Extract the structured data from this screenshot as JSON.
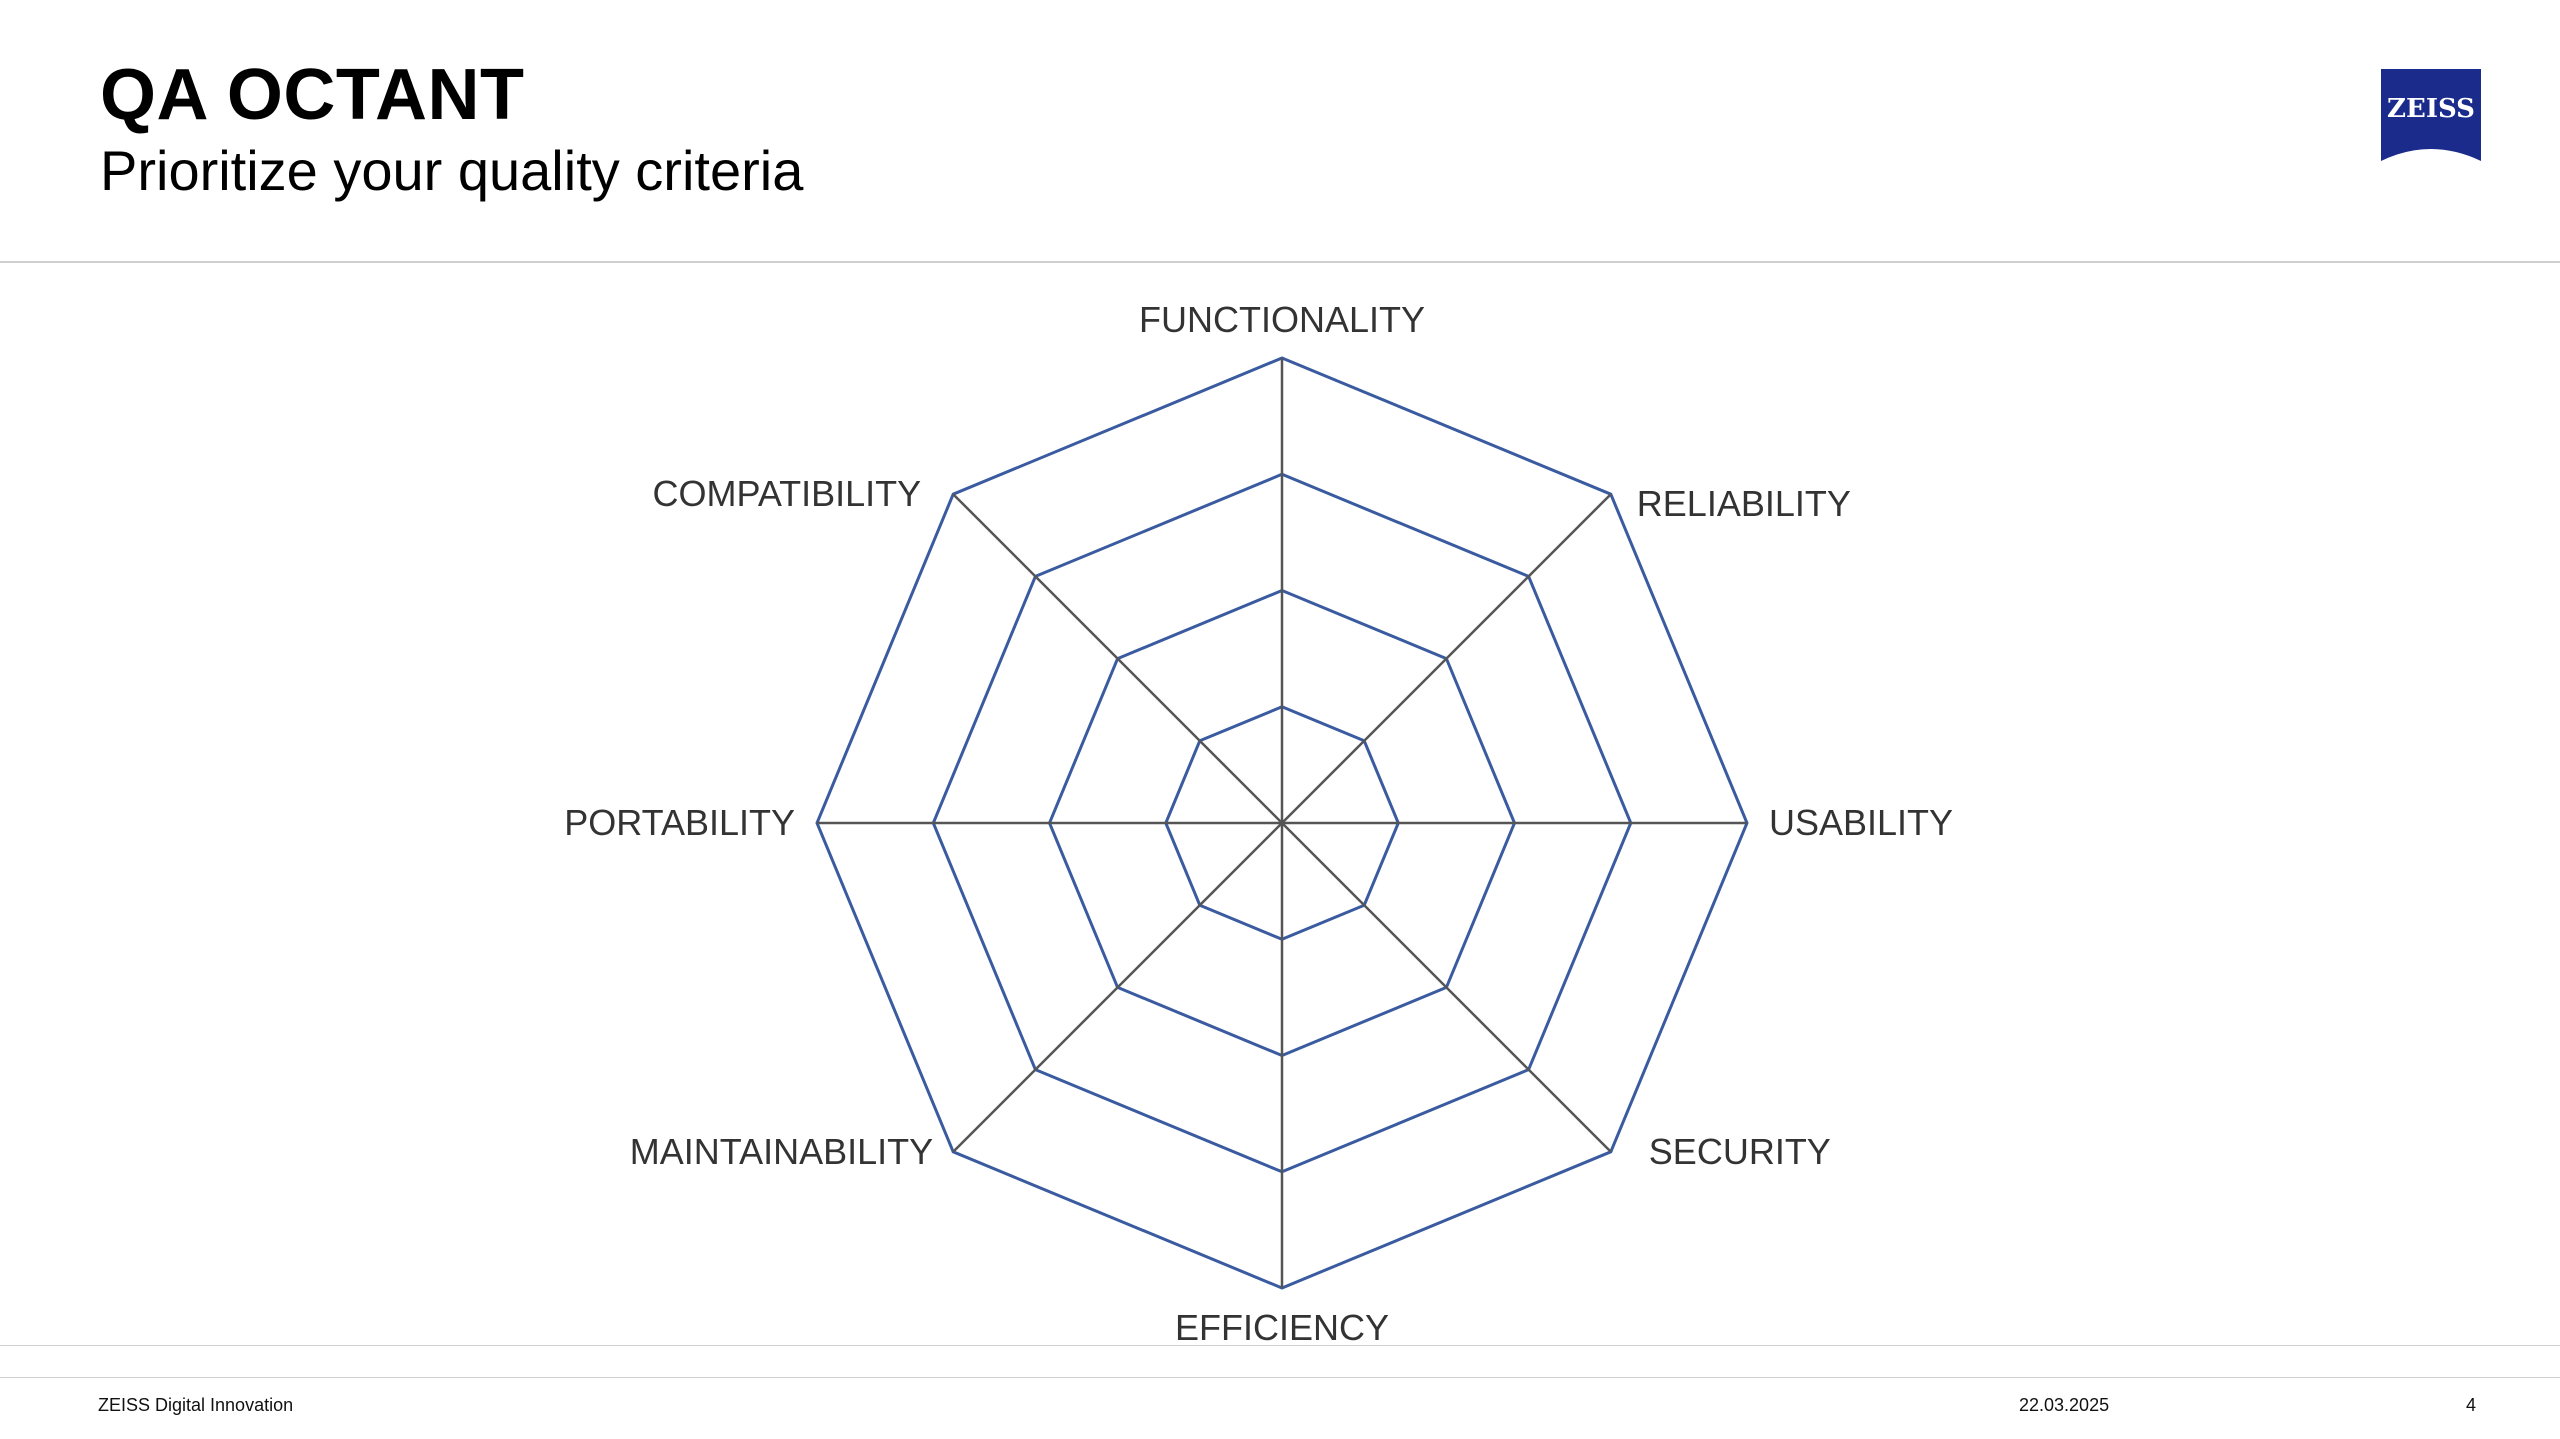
{
  "header": {
    "title": "QA OCTANT",
    "subtitle": "Prioritize your quality criteria",
    "logo_text": "ZEISS"
  },
  "diagram": {
    "type": "radar-grid",
    "rings": 4,
    "axes": [
      "FUNCTIONALITY",
      "RELIABILITY",
      "USABILITY",
      "SECURITY",
      "EFFICIENCY",
      "MAINTAINABILITY",
      "PORTABILITY",
      "COMPATIBILITY"
    ],
    "ring_color": "#3a5ba0",
    "spoke_color": "#555555"
  },
  "footer": {
    "company": "ZEISS Digital Innovation",
    "date": "22.03.2025",
    "page": "4"
  },
  "colors": {
    "logo_blue": "#1a2b8c",
    "rule": "#d0d0d0"
  }
}
